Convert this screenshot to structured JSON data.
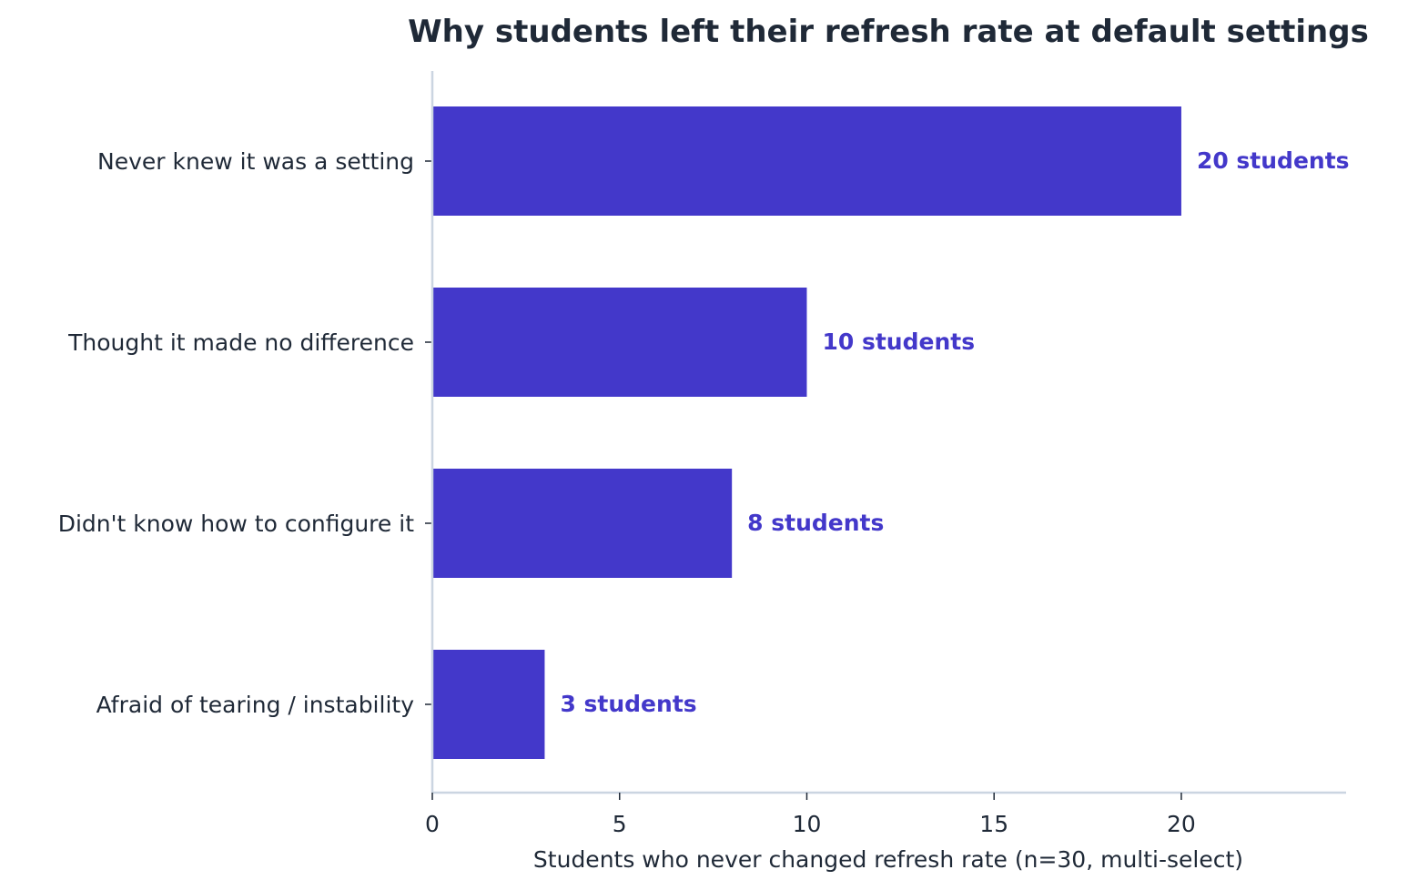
{
  "chart_data": {
    "type": "bar",
    "orientation": "horizontal",
    "title": "Why students left their refresh rate at default settings",
    "xlabel": "Students who never changed refresh rate (n=30, multi-select)",
    "ylabel": "",
    "categories": [
      "Never knew it was a setting",
      "Thought it made no difference",
      "Didn't know how to configure it",
      "Afraid of tearing / instability"
    ],
    "values": [
      20,
      10,
      8,
      3
    ],
    "value_labels": [
      "20 students",
      "10 students",
      "8 students",
      "3 students"
    ],
    "xlim": [
      0,
      24.4
    ],
    "xticks": [
      0,
      5,
      10,
      15,
      20
    ],
    "xtick_labels": [
      "0",
      "5",
      "10",
      "15",
      "20"
    ],
    "grid": false,
    "legend": "none",
    "colors": {
      "bar": "#4338ca",
      "value_label": "#4338ca",
      "text": "#1f2937",
      "axis": "#cbd5e1"
    }
  }
}
